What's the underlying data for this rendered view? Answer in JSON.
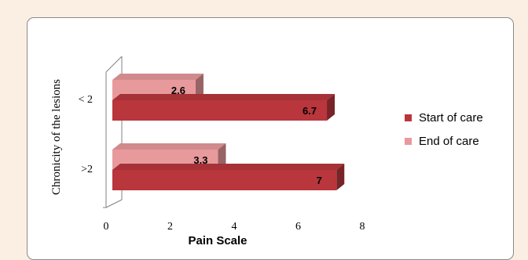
{
  "chart_data": {
    "type": "bar",
    "orientation": "horizontal",
    "categories": [
      "< 2",
      ">2"
    ],
    "series": [
      {
        "name": "Start of care",
        "values": [
          6.7,
          7
        ],
        "color": "#b8363c"
      },
      {
        "name": "End of care",
        "values": [
          2.6,
          3.3
        ],
        "color": "#e8999c"
      }
    ],
    "xlabel": "Pain Scale",
    "ylabel": "Chronicity of the lesions",
    "xlim": [
      0,
      8
    ],
    "xticks": [
      0,
      2,
      4,
      6,
      8
    ],
    "data_labels": true,
    "legend_position": "right",
    "grid": false,
    "style": "3d"
  }
}
